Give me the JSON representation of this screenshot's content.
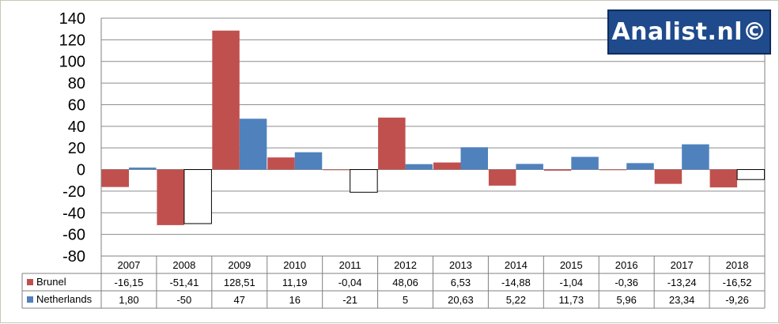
{
  "logo": {
    "text": "Analist.nl©"
  },
  "chart_data": {
    "type": "bar",
    "categories": [
      "2007",
      "2008",
      "2009",
      "2010",
      "2011",
      "2012",
      "2013",
      "2014",
      "2015",
      "2016",
      "2017",
      "2018"
    ],
    "series": [
      {
        "name": "Brunel",
        "color": "#c0504d",
        "values": [
          -16.15,
          -51.41,
          128.51,
          11.19,
          -0.04,
          48.06,
          6.53,
          -14.88,
          -1.04,
          -0.36,
          -13.24,
          -16.52
        ],
        "labels": [
          "-16,15",
          "-51,41",
          "128,51",
          "11,19",
          "-0,04",
          "48,06",
          "6,53",
          "-14,88",
          "-1,04",
          "-0,36",
          "-13,24",
          "-16,52"
        ]
      },
      {
        "name": "Netherlands",
        "color": "#4f81bd",
        "negative_fill": "#ffffff",
        "values": [
          1.8,
          -50,
          47,
          16,
          -21,
          5,
          20.63,
          5.22,
          11.73,
          5.96,
          23.34,
          -9.26
        ],
        "labels": [
          "1,80",
          "-50",
          "47",
          "16",
          "-21",
          "5",
          "20,63",
          "5,22",
          "11,73",
          "5,96",
          "23,34",
          "-9,26"
        ]
      }
    ],
    "yticks": [
      "140",
      "120",
      "100",
      "80",
      "60",
      "40",
      "20",
      "0",
      "-20",
      "-40",
      "-60",
      "-80"
    ],
    "ylim": [
      -80,
      140
    ],
    "ystep": 20,
    "grid": true,
    "legend": "data-table"
  }
}
